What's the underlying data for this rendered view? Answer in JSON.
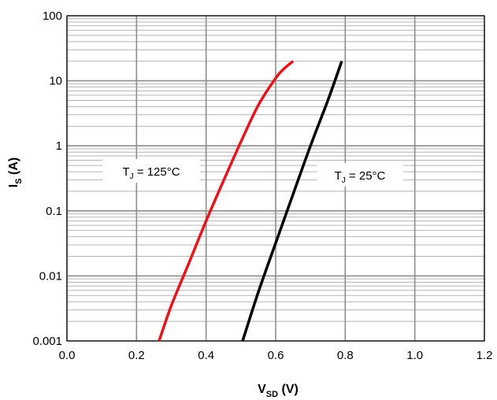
{
  "chart_data": {
    "type": "line",
    "x_scale": "linear",
    "y_scale": "log",
    "xlim": [
      0.0,
      1.2
    ],
    "ylim": [
      0.001,
      100
    ],
    "x_ticks": [
      "0.0",
      "0.2",
      "0.4",
      "0.6",
      "0.8",
      "1.0",
      "1.2"
    ],
    "y_ticks": [
      "0.001",
      "0.01",
      "0.1",
      "1",
      "10",
      "100"
    ],
    "xlabel": {
      "main": "V",
      "sub": "SD",
      "unit": " (V)"
    },
    "ylabel": {
      "main": "I",
      "sub": "S",
      "unit": " (A)"
    },
    "grid": true,
    "series": [
      {
        "name": "TJ = 125°C",
        "color": "#e8141c",
        "x": [
          0.265,
          0.3,
          0.35,
          0.4,
          0.45,
          0.5,
          0.55,
          0.6,
          0.625,
          0.65
        ],
        "y": [
          0.001,
          0.0035,
          0.0155,
          0.07,
          0.29,
          1.15,
          4.2,
          11.0,
          15.5,
          20
        ]
      },
      {
        "name": "TJ = 25°C",
        "color": "#000000",
        "x": [
          0.505,
          0.55,
          0.6,
          0.65,
          0.7,
          0.75,
          0.79
        ],
        "y": [
          0.001,
          0.0056,
          0.032,
          0.18,
          1.0,
          5.0,
          20
        ]
      }
    ],
    "annotations": [
      {
        "main": "T",
        "sub": "J",
        "rest": " = 125°C",
        "series": "TJ = 125°C"
      },
      {
        "main": "T",
        "sub": "J",
        "rest": " = 25°C",
        "series": "TJ = 25°C"
      }
    ]
  }
}
